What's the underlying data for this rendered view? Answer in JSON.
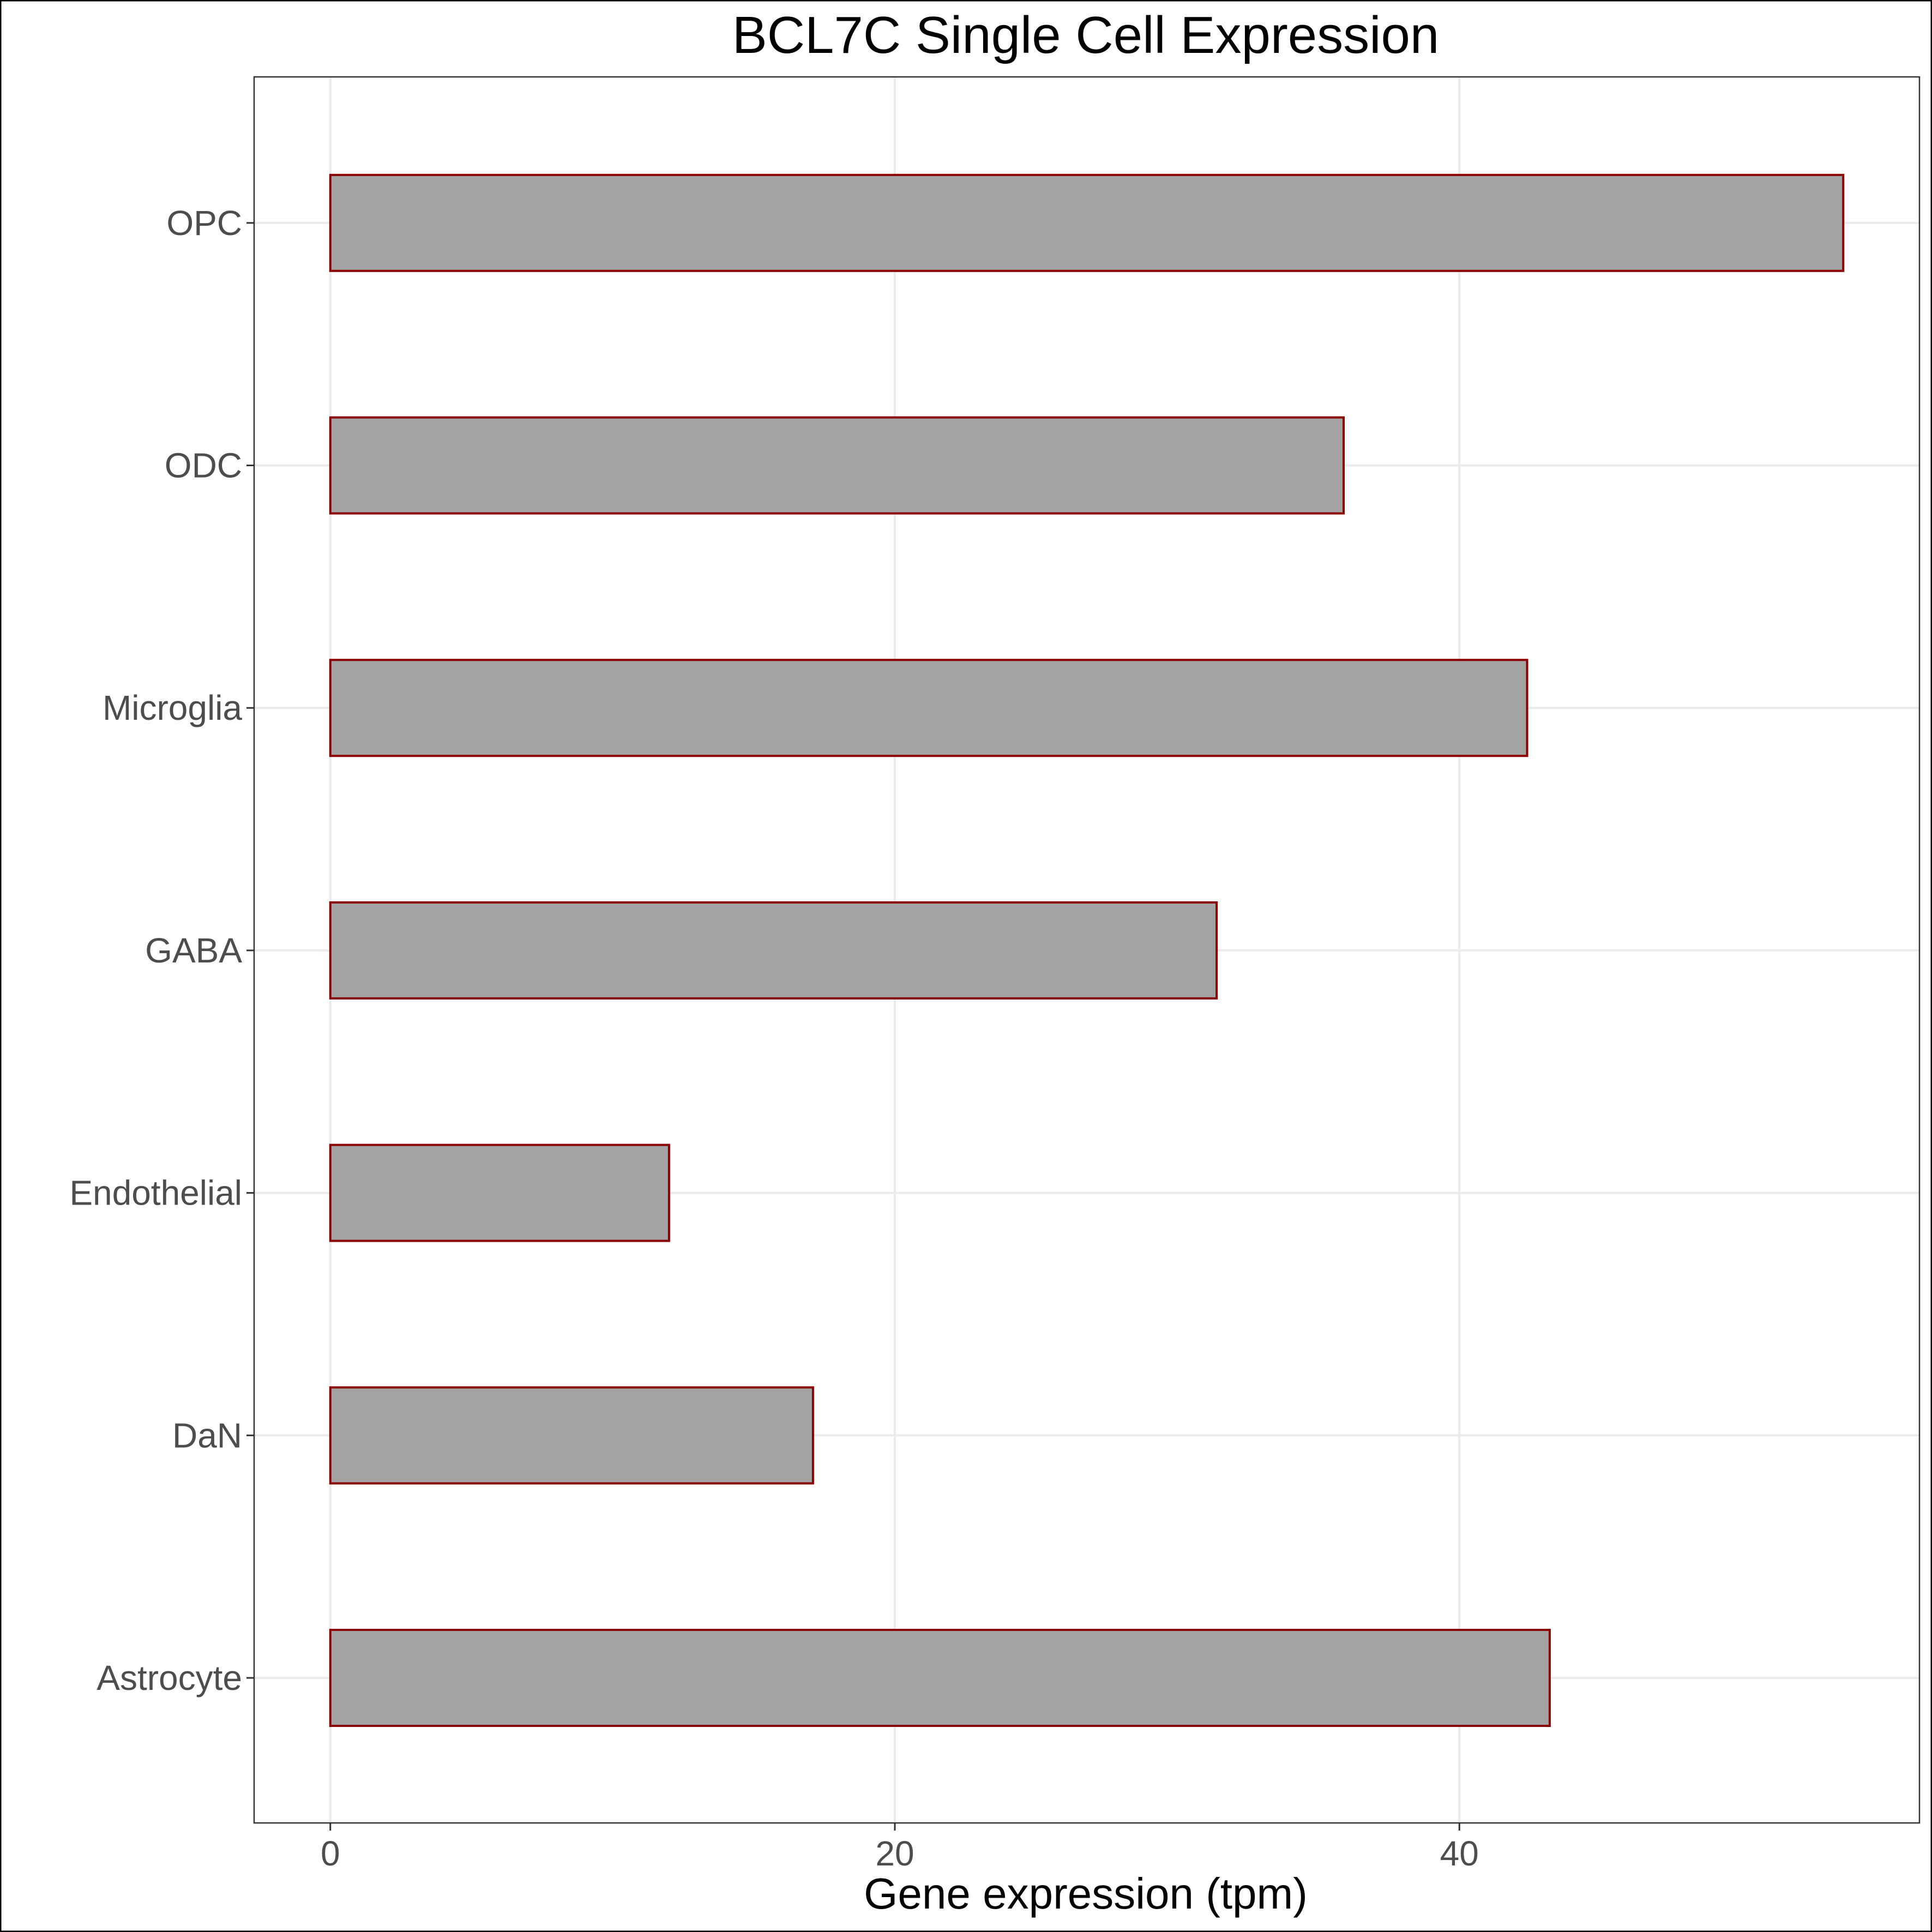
{
  "chart_data": {
    "type": "bar",
    "orientation": "horizontal",
    "title": "BCL7C Single Cell Expression",
    "xlabel": "Gene expression (tpm)",
    "ylabel": "",
    "categories": [
      "Astrocyte",
      "DaN",
      "Endothelial",
      "GABA",
      "Microglia",
      "ODC",
      "OPC"
    ],
    "values": [
      43.2,
      17.1,
      12.0,
      31.4,
      42.4,
      35.9,
      53.6
    ],
    "xlim": [
      -2.7,
      56.3
    ],
    "xticks": [
      0,
      20,
      40
    ],
    "tick_labels": [
      "0",
      "20",
      "40"
    ],
    "grid": true,
    "colors": {
      "bar_fill": "#a3a3a3",
      "bar_outline": "#8b0000",
      "grid": "#ebebeb",
      "panel_border": "#333333",
      "tick_text": "#4d4d4d",
      "title_text": "#000000"
    }
  }
}
